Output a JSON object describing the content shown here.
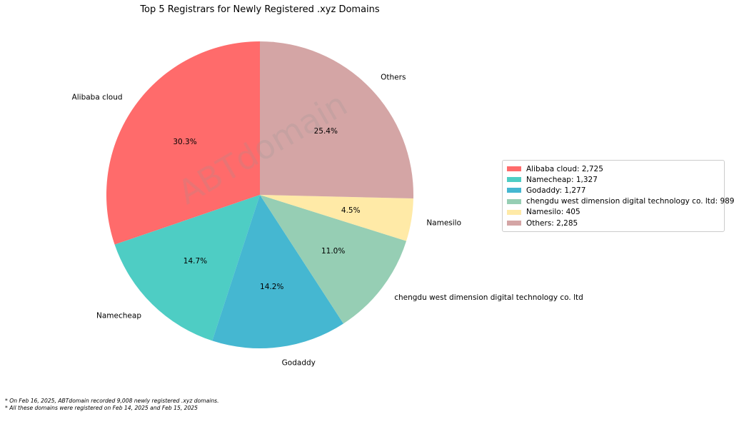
{
  "chart_data": {
    "type": "pie",
    "title": "Top 5 Registrars for Newly Registered .xyz Domains",
    "slices": [
      {
        "label": "Alibaba cloud",
        "value": 2725,
        "percent_label": "30.3%",
        "legend": "Alibaba cloud: 2,725",
        "color": "#FF6B6B"
      },
      {
        "label": "Namecheap",
        "value": 1327,
        "percent_label": "14.7%",
        "legend": "Namecheap: 1,327",
        "color": "#4ECDC4"
      },
      {
        "label": "Godaddy",
        "value": 1277,
        "percent_label": "14.2%",
        "legend": "Godaddy: 1,277",
        "color": "#45B7D1"
      },
      {
        "label": "chengdu west dimension digital technology co. ltd",
        "value": 989,
        "percent_label": "11.0%",
        "legend": "chengdu west dimension digital technology co. ltd: 989",
        "color": "#96CEB4"
      },
      {
        "label": "Namesilo",
        "value": 405,
        "percent_label": "4.5%",
        "legend": "Namesilo: 405",
        "color": "#FFEAA7"
      },
      {
        "label": "Others",
        "value": 2285,
        "percent_label": "25.4%",
        "legend": "Others: 2,285",
        "color": "#D4A5A5"
      }
    ],
    "start_angle_deg": 90,
    "direction": "counterclockwise",
    "legend_placement": "right"
  },
  "watermark": "ABTdomain",
  "footnotes": [
    "* On Feb 16, 2025, ABTdomain recorded 9,008 newly registered .xyz domains.",
    "* All these domains were registered on Feb 14, 2025 and Feb 15, 2025"
  ]
}
